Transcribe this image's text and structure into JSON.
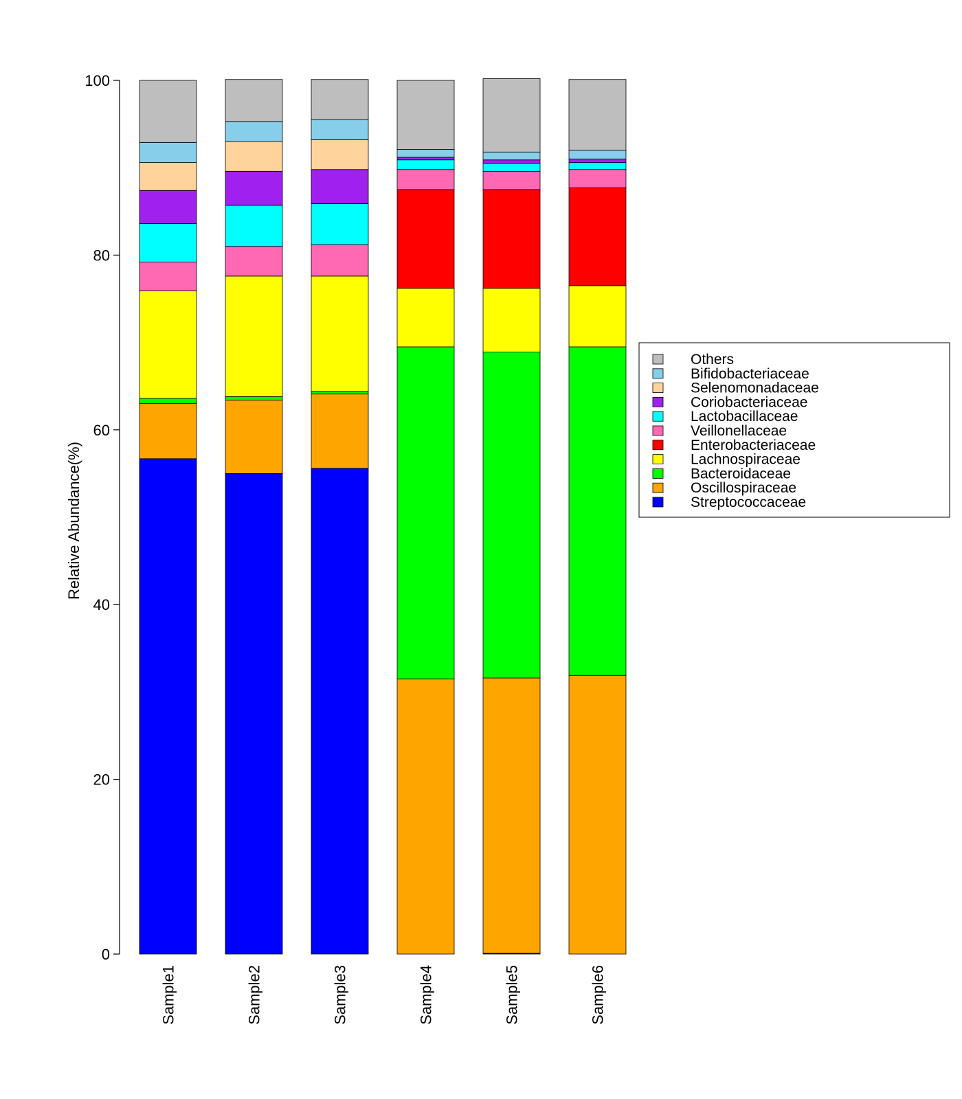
{
  "chart_data": {
    "type": "bar",
    "stacked": true,
    "title": "",
    "xlabel": "",
    "ylabel": "Relative Abundance(%)",
    "ylim": [
      0,
      100
    ],
    "yticks": [
      "0",
      "20",
      "40",
      "60",
      "80",
      "100"
    ],
    "grid": false,
    "legend_position": "right",
    "categories": [
      "Sample1",
      "Sample2",
      "Sample3",
      "Sample4",
      "Sample5",
      "Sample6"
    ],
    "series": [
      {
        "name": "Streptococcaceae",
        "color": "#0000ff",
        "values": [
          56.7,
          55.0,
          55.6,
          0.0,
          0.1,
          0.0
        ]
      },
      {
        "name": "Oscillospiraceae",
        "color": "#ffa500",
        "values": [
          6.3,
          8.4,
          8.5,
          31.5,
          31.5,
          31.9
        ]
      },
      {
        "name": "Bacteroidaceae",
        "color": "#00ff00",
        "values": [
          0.6,
          0.4,
          0.3,
          38.0,
          37.3,
          37.6
        ]
      },
      {
        "name": "Lachnospiraceae",
        "color": "#ffff00",
        "values": [
          12.3,
          13.8,
          13.2,
          6.7,
          7.3,
          7.0
        ]
      },
      {
        "name": "Enterobacteriaceae",
        "color": "#ff0000",
        "values": [
          0.0,
          0.0,
          0.0,
          11.3,
          11.3,
          11.2
        ]
      },
      {
        "name": "Veillonellaceae",
        "color": "#ff69b4",
        "values": [
          3.3,
          3.4,
          3.6,
          2.3,
          2.1,
          2.1
        ]
      },
      {
        "name": "Lactobacillaceae",
        "color": "#00ffff",
        "values": [
          4.4,
          4.7,
          4.7,
          1.1,
          0.9,
          0.8
        ]
      },
      {
        "name": "Coriobacteriaceae",
        "color": "#a020f0",
        "values": [
          3.8,
          3.9,
          3.9,
          0.3,
          0.4,
          0.4
        ]
      },
      {
        "name": "Selenomonadaceae",
        "color": "#ffd39b",
        "values": [
          3.2,
          3.4,
          3.4,
          0.0,
          0.0,
          0.0
        ]
      },
      {
        "name": "Bifidobacteriaceae",
        "color": "#87ceeb",
        "values": [
          2.3,
          2.3,
          2.3,
          0.9,
          0.9,
          1.0
        ]
      },
      {
        "name": "Others",
        "color": "#bebebe",
        "values": [
          7.1,
          4.8,
          4.6,
          7.9,
          8.4,
          8.1
        ]
      }
    ]
  }
}
